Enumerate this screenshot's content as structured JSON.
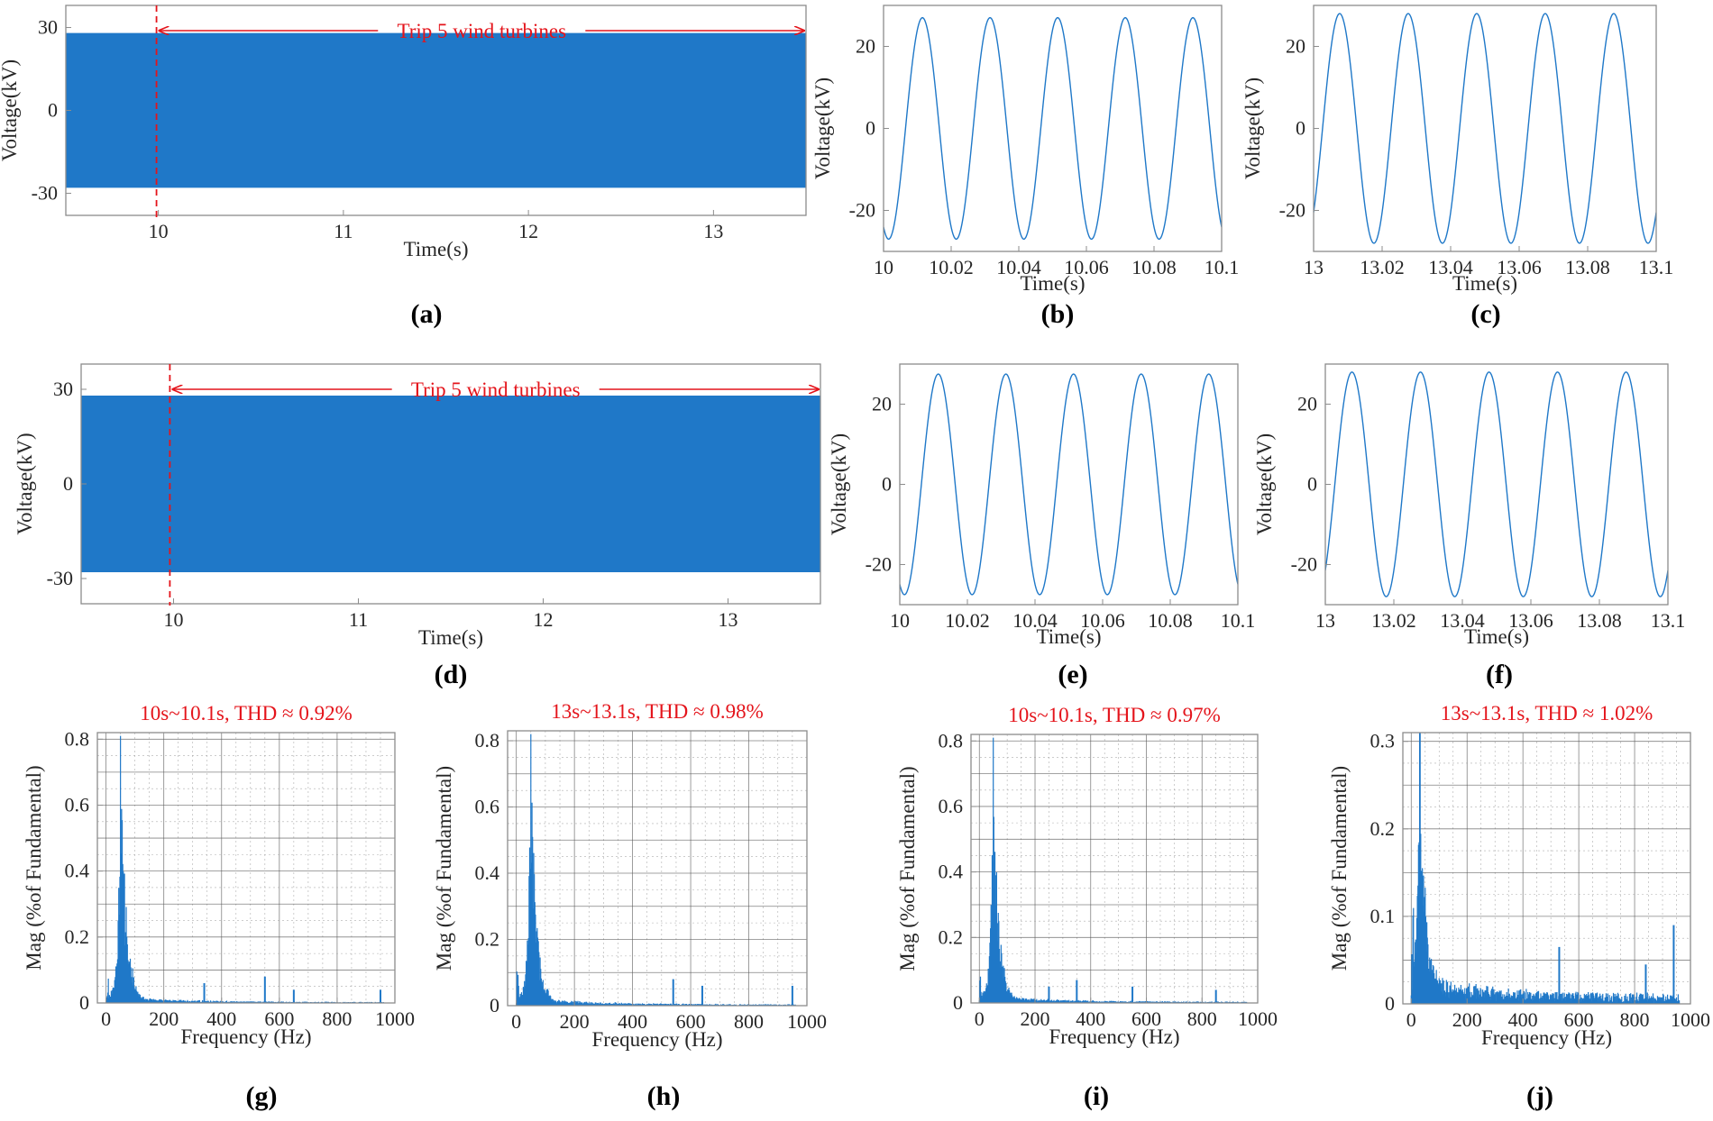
{
  "chart_data": [
    {
      "id": "a",
      "type": "line",
      "panel_label": "(a)",
      "kind": "overview",
      "xlabel": "Time(s)",
      "ylabel": "Voltage(kV)",
      "xlim": [
        9.5,
        13.5
      ],
      "ylim": [
        -38,
        38
      ],
      "xticks": [
        10,
        11,
        12,
        13
      ],
      "yticks": [
        -30,
        0,
        30
      ],
      "amplitude": 28,
      "event_time": 9.99,
      "annotation": "Trip 5 wind turbines",
      "annotation_range": [
        9.99,
        13.5
      ]
    },
    {
      "id": "b",
      "type": "line",
      "panel_label": "(b)",
      "kind": "zoom",
      "xlabel": "Time(s)",
      "ylabel": "Voltage(kV)",
      "xlim": [
        10,
        10.1
      ],
      "ylim": [
        -30,
        30
      ],
      "xticks": [
        10,
        10.02,
        10.04,
        10.06,
        10.08,
        10.1
      ],
      "yticks": [
        -20,
        0,
        20
      ],
      "amplitude": 27,
      "frequency_hz": 50,
      "phase_deg": -117
    },
    {
      "id": "c",
      "type": "line",
      "panel_label": "(c)",
      "kind": "zoom",
      "xlabel": "Time(s)",
      "ylabel": "Voltage(kV)",
      "xlim": [
        13,
        13.1
      ],
      "ylim": [
        -30,
        30
      ],
      "xticks": [
        13,
        13.02,
        13.04,
        13.06,
        13.08,
        13.1
      ],
      "yticks": [
        -20,
        0,
        20
      ],
      "amplitude": 28,
      "frequency_hz": 50,
      "phase_deg": -47
    },
    {
      "id": "d",
      "type": "line",
      "panel_label": "(d)",
      "kind": "overview",
      "xlabel": "Time(s)",
      "ylabel": "Voltage(kV)",
      "xlim": [
        9.5,
        13.5
      ],
      "ylim": [
        -38,
        38
      ],
      "xticks": [
        10,
        11,
        12,
        13
      ],
      "yticks": [
        -30,
        0,
        30
      ],
      "amplitude": 28,
      "event_time": 9.98,
      "annotation": "Trip 5 wind turbines",
      "annotation_range": [
        9.98,
        13.5
      ]
    },
    {
      "id": "e",
      "type": "line",
      "panel_label": "(e)",
      "kind": "zoom",
      "xlabel": "Time(s)",
      "ylabel": "Voltage(kV)",
      "xlim": [
        10,
        10.1
      ],
      "ylim": [
        -30,
        30
      ],
      "xticks": [
        10,
        10.02,
        10.04,
        10.06,
        10.08,
        10.1
      ],
      "yticks": [
        -20,
        0,
        20
      ],
      "amplitude": 27.5,
      "frequency_hz": 50,
      "phase_deg": -115
    },
    {
      "id": "f",
      "type": "line",
      "panel_label": "(f)",
      "kind": "zoom",
      "xlabel": "Time(s)",
      "ylabel": "Voltage(kV)",
      "xlim": [
        13,
        13.1
      ],
      "ylim": [
        -30,
        30
      ],
      "xticks": [
        13,
        13.02,
        13.04,
        13.06,
        13.08,
        13.1
      ],
      "yticks": [
        -20,
        0,
        20
      ],
      "amplitude": 28,
      "frequency_hz": 50,
      "phase_deg": -50
    },
    {
      "id": "g",
      "type": "bar",
      "panel_label": "(g)",
      "kind": "fft",
      "title": "10s~10.1s, THD ≈   0.92%",
      "xlabel": "Frequency (Hz)",
      "ylabel": "Mag (%of Fundamental)",
      "xlim": [
        -30,
        1000
      ],
      "ylim": [
        0,
        0.82
      ],
      "xticks": [
        0,
        200,
        400,
        600,
        800,
        1000
      ],
      "xtick_labels": [
        "0",
        "200",
        "400",
        "600",
        "800",
        "1000"
      ],
      "yticks": [
        0,
        0.2,
        0.4,
        0.6,
        0.8
      ],
      "ytick_labels": [
        "0",
        "0.2",
        "0.4",
        "0.6",
        "0.8"
      ],
      "peak_freq": 50,
      "peak_value": 0.81,
      "floor": 0.014,
      "tail": 0.003,
      "spikes": [
        [
          340,
          0.06
        ],
        [
          550,
          0.08
        ],
        [
          650,
          0.04
        ],
        [
          950,
          0.04
        ]
      ]
    },
    {
      "id": "h",
      "type": "bar",
      "panel_label": "(h)",
      "kind": "fft",
      "title": "13s~13.1s, THD ≈ 0.98%",
      "xlabel": "Frequency (Hz)",
      "ylabel": "Mag (%of Fundamental)",
      "xlim": [
        -30,
        1000
      ],
      "ylim": [
        0,
        0.83
      ],
      "xticks": [
        0,
        200,
        400,
        600,
        800,
        1000
      ],
      "xtick_labels": [
        "0",
        "200",
        "400",
        "600",
        "800",
        "1000"
      ],
      "yticks": [
        0,
        0.2,
        0.4,
        0.6,
        0.8
      ],
      "ytick_labels": [
        "0",
        "0.2",
        "0.4",
        "0.6",
        "0.8"
      ],
      "peak_freq": 50,
      "peak_value": 0.82,
      "floor": 0.018,
      "tail": 0.004,
      "spikes": [
        [
          540,
          0.08
        ],
        [
          640,
          0.06
        ],
        [
          950,
          0.06
        ]
      ]
    },
    {
      "id": "i",
      "type": "bar",
      "panel_label": "(i)",
      "kind": "fft",
      "title": "10s~10.1s, THD ≈ 0.97%",
      "xlabel": "Frequency (Hz)",
      "ylabel": "Mag (%of Fundamental)",
      "xlim": [
        -30,
        1000
      ],
      "ylim": [
        0,
        0.82
      ],
      "xticks": [
        0,
        200,
        400,
        600,
        800,
        1000
      ],
      "xtick_labels": [
        "0",
        "200",
        "400",
        "600",
        "800",
        "1000"
      ],
      "yticks": [
        0,
        0.2,
        0.4,
        0.6,
        0.8
      ],
      "ytick_labels": [
        "0",
        "0.2",
        "0.4",
        "0.6",
        "0.8"
      ],
      "peak_freq": 50,
      "peak_value": 0.81,
      "floor": 0.016,
      "tail": 0.004,
      "spikes": [
        [
          250,
          0.05
        ],
        [
          350,
          0.07
        ],
        [
          550,
          0.05
        ],
        [
          850,
          0.04
        ]
      ]
    },
    {
      "id": "j",
      "type": "bar",
      "panel_label": "(j)",
      "kind": "fft",
      "title": "13s~13.1s, THD ≈ 1.02%",
      "xlabel": "Frequency (Hz)",
      "ylabel": "Mag (%of Fundamental)",
      "xlim": [
        -30,
        1000
      ],
      "ylim": [
        0,
        0.31
      ],
      "xticks": [
        0,
        200,
        400,
        600,
        800,
        1000
      ],
      "xtick_labels": [
        "0",
        "200",
        "400",
        "600",
        "800",
        "1000"
      ],
      "yticks": [
        0,
        0.1,
        0.2,
        0.3
      ],
      "ytick_labels": [
        "0",
        "0.1",
        "0.2",
        "0.3"
      ],
      "peak_freq": 30,
      "peak_value": 0.31,
      "floor": 0.02,
      "tail": 0.012,
      "spikes": [
        [
          530,
          0.065
        ],
        [
          840,
          0.045
        ],
        [
          940,
          0.09
        ]
      ]
    }
  ]
}
